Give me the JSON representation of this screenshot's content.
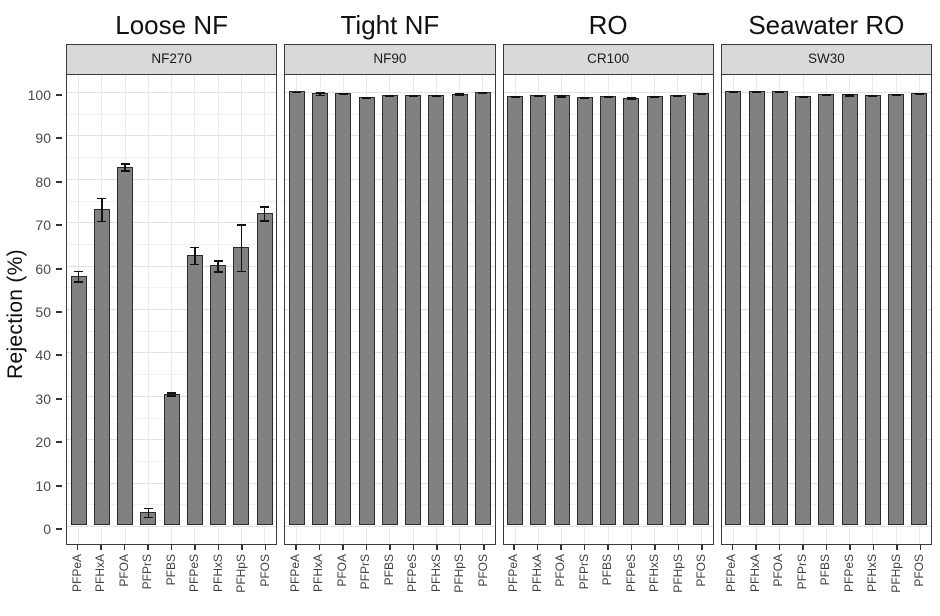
{
  "figure": {
    "ylabel": "Rejection (%)",
    "y_ticks": [
      0,
      10,
      20,
      30,
      40,
      50,
      60,
      70,
      80,
      90,
      100
    ],
    "colors": {
      "bar_fill": "#818181",
      "bar_stroke": "#2b2b2b",
      "strip_bg": "#d9d9d9",
      "panel_border": "#3b3b3b",
      "grid_major": "#e2e2e2",
      "grid_minor": "#f1f1f1",
      "grid_vertical": "#eaeaea",
      "error_bar": "#111111"
    }
  },
  "chart_data": {
    "type": "bar",
    "title": "",
    "xlabel": "",
    "ylabel": "Rejection (%)",
    "ylim": [
      0,
      100
    ],
    "grid": true,
    "legend": false,
    "categories": [
      "PFPeA",
      "PFHxA",
      "PFOA",
      "PFPrS",
      "PFBS",
      "PFPeS",
      "PFHxS",
      "PFHpS",
      "PFOS"
    ],
    "panels": [
      {
        "title": "Loose NF",
        "strip": "NF270",
        "values": [
          57.4,
          72.8,
          82.6,
          3.0,
          30.3,
          62.2,
          59.8,
          64.0,
          71.9
        ],
        "errors": [
          1.4,
          2.8,
          1.0,
          1.2,
          0.5,
          2.1,
          1.4,
          5.5,
          1.8
        ]
      },
      {
        "title": "Tight NF",
        "strip": "NF90",
        "values": [
          99.9,
          99.5,
          99.5,
          98.6,
          99.0,
          99.0,
          99.1,
          99.4,
          99.7
        ],
        "errors": [
          0.15,
          0.5,
          0.3,
          0.3,
          0.1,
          0.1,
          0.1,
          0.3,
          0.15
        ]
      },
      {
        "title": "RO",
        "strip": "CR100",
        "values": [
          98.9,
          99.1,
          99.0,
          98.7,
          98.9,
          98.5,
          98.9,
          99.0,
          99.6
        ],
        "errors": [
          0.2,
          0.1,
          0.3,
          0.1,
          0.2,
          0.3,
          0.1,
          0.1,
          0.1
        ]
      },
      {
        "title": "Seawater RO",
        "strip": "SW30",
        "values": [
          100.0,
          100.0,
          100.0,
          98.9,
          99.3,
          99.2,
          99.1,
          99.3,
          99.5
        ],
        "errors": [
          0.1,
          0.1,
          0.1,
          0.1,
          0.1,
          0.1,
          0.1,
          0.1,
          0.1
        ]
      }
    ]
  }
}
